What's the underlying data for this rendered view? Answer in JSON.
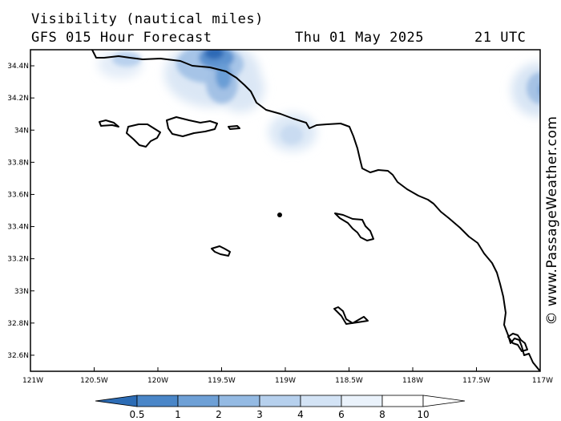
{
  "header": {
    "title": "Visibility (nautical miles)",
    "subtitle": "GFS 015 Hour Forecast",
    "date": "Thu 01 May 2025",
    "time": "21 UTC"
  },
  "map": {
    "lat_labels": [
      "34.4N",
      "34.2N",
      "34N",
      "33.8N",
      "33.6N",
      "33.4N",
      "33.2N",
      "33N",
      "32.8N",
      "32.6N"
    ],
    "lon_labels": [
      "121W",
      "120.5W",
      "120W",
      "119.5W",
      "119W",
      "118.5W",
      "118W",
      "117.5W",
      "117W"
    ],
    "lat_range": [
      32.5,
      34.5
    ],
    "lon_range": [
      -121,
      -117
    ]
  },
  "colorbar": {
    "ticks": [
      "0.5",
      "1",
      "2",
      "3",
      "4",
      "6",
      "8",
      "10"
    ],
    "colors": [
      "#2c6cb5",
      "#4a86c8",
      "#6ea0d6",
      "#94bae3",
      "#b6d0ed",
      "#d3e3f5",
      "#eaf2fb",
      "#ffffff",
      "#ffffff"
    ]
  },
  "watermark": "© www.PassageWeather.com"
}
